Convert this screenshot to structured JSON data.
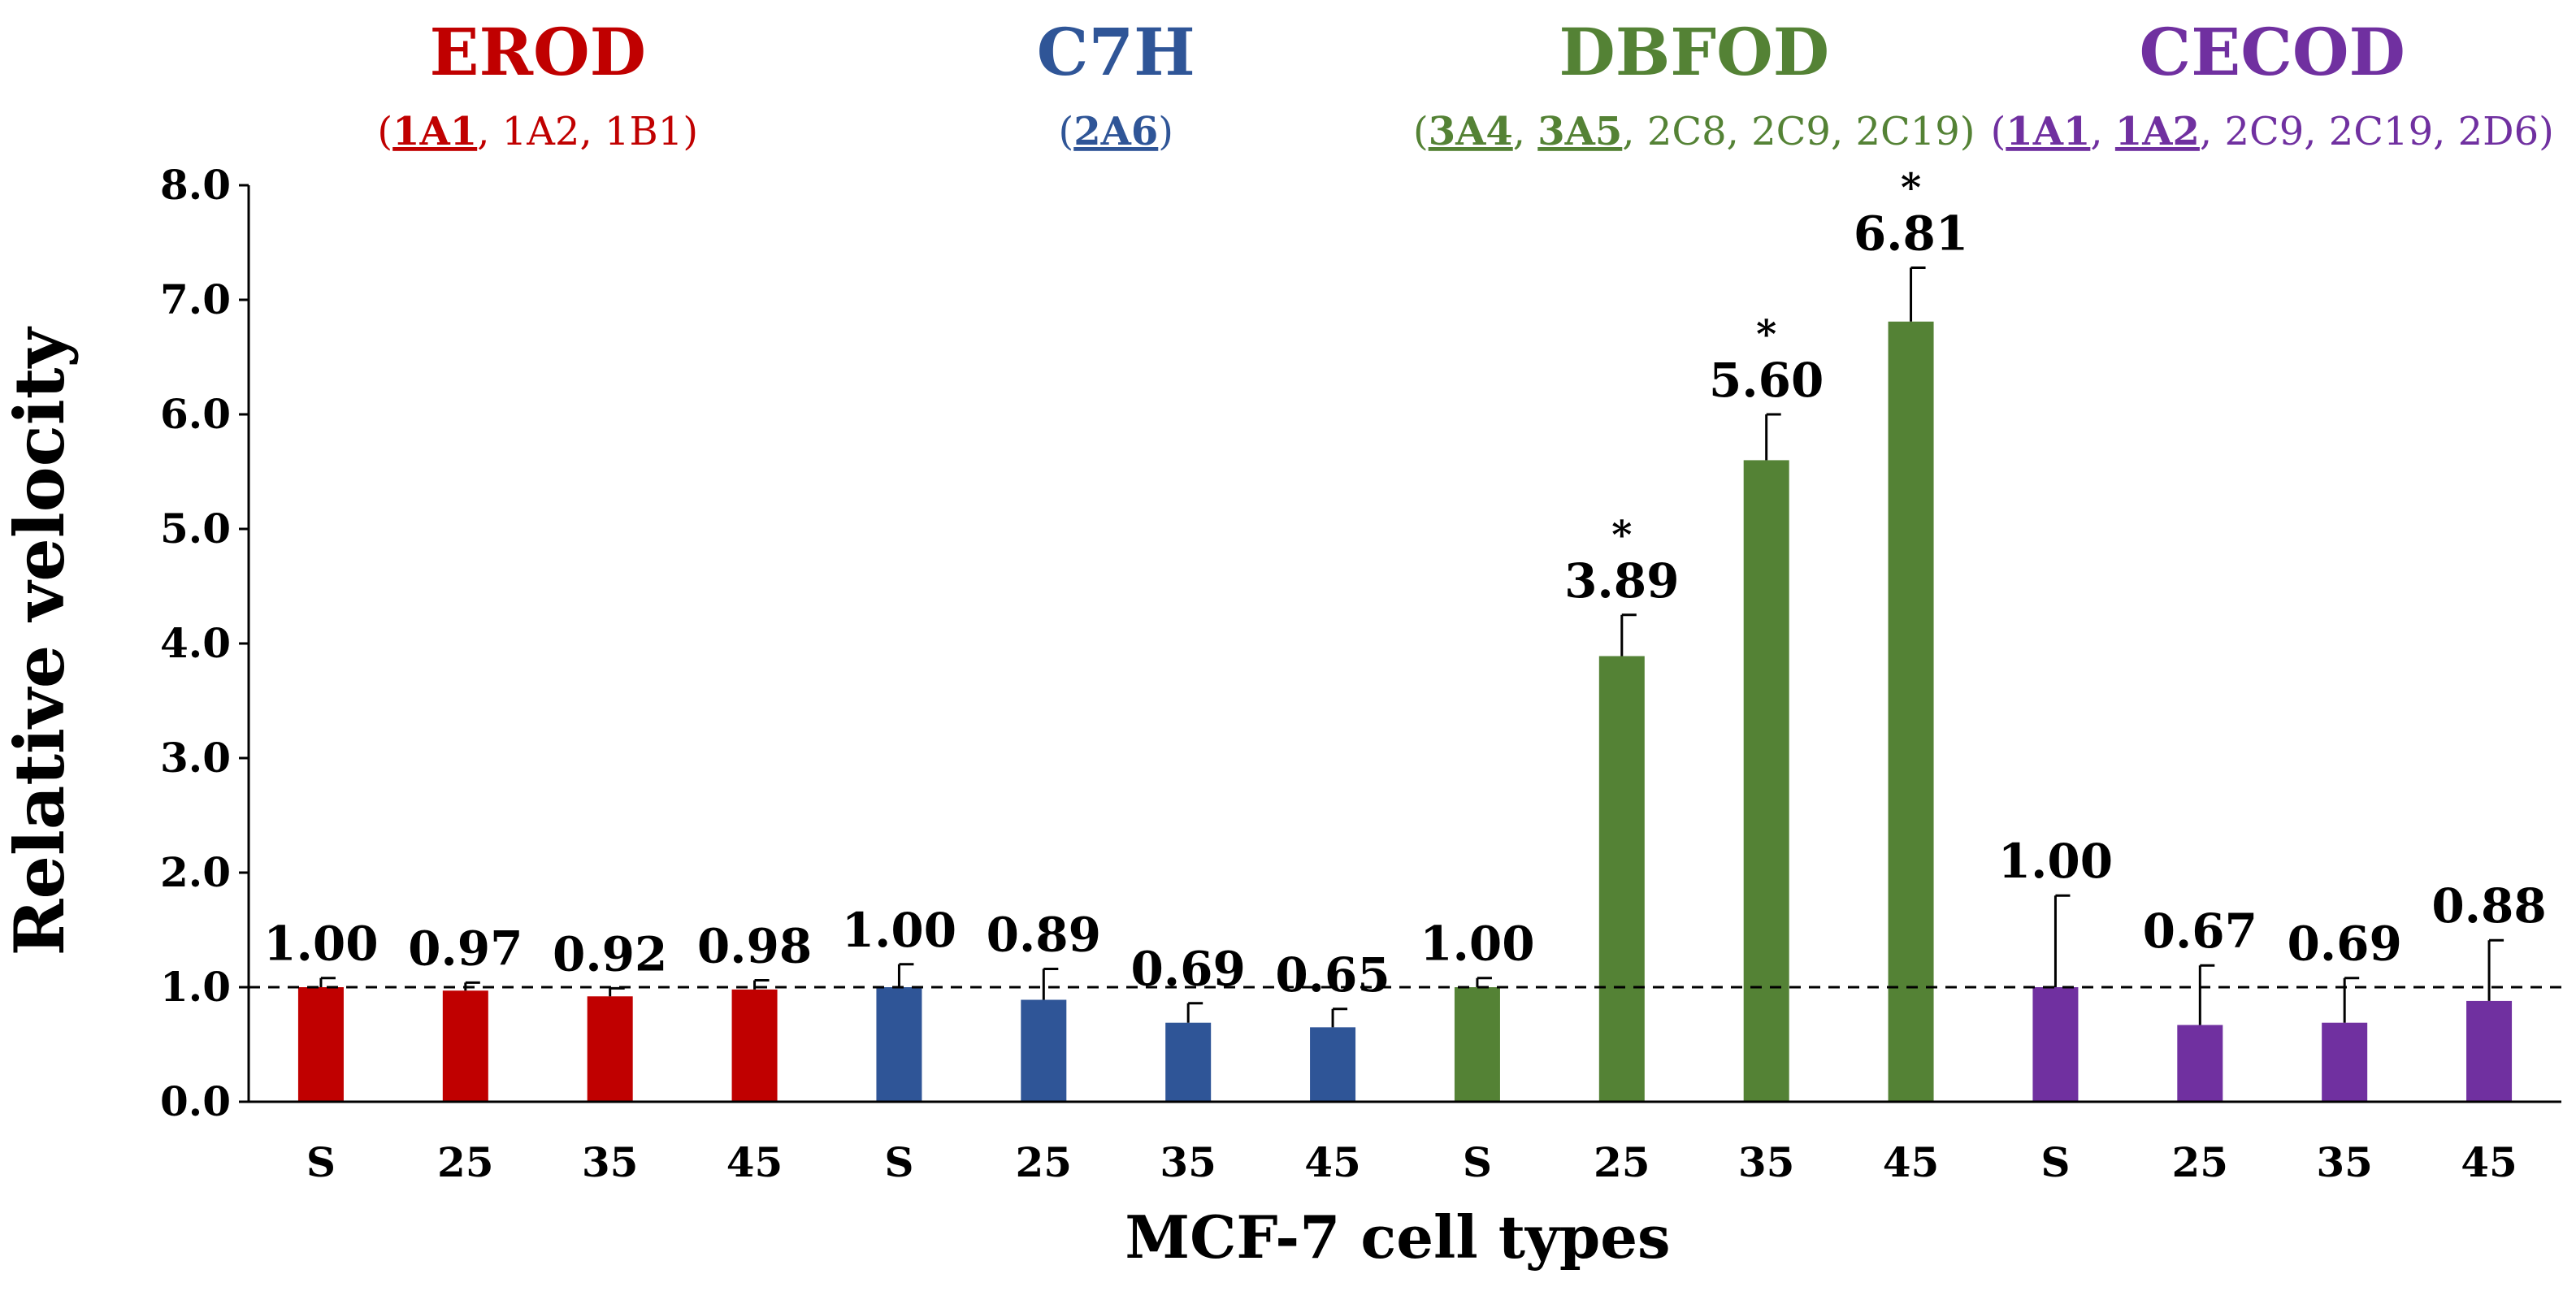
{
  "chart_data": {
    "type": "bar",
    "xlabel": "MCF-7 cell types",
    "ylabel": "Relative velocity",
    "ylim": [
      0,
      8
    ],
    "yticks": [
      "0.0",
      "1.0",
      "2.0",
      "3.0",
      "4.0",
      "5.0",
      "6.0",
      "7.0",
      "8.0"
    ],
    "reference_line": 1.0,
    "groups": [
      {
        "name": "EROD",
        "color": "#c00000",
        "subtitle_parts": [
          {
            "text": "(",
            "u": false
          },
          {
            "text": "1A1",
            "u": true
          },
          {
            "text": ", 1A2, 1B1)",
            "u": false
          }
        ],
        "bars": [
          {
            "category": "S",
            "value": 1.0,
            "label": "1.00",
            "error": 0.08,
            "sig": ""
          },
          {
            "category": "25",
            "value": 0.97,
            "label": "0.97",
            "error": 0.07,
            "sig": ""
          },
          {
            "category": "35",
            "value": 0.92,
            "label": "0.92",
            "error": 0.07,
            "sig": ""
          },
          {
            "category": "45",
            "value": 0.98,
            "label": "0.98",
            "error": 0.08,
            "sig": ""
          }
        ]
      },
      {
        "name": "C7H",
        "color": "#2f5597",
        "subtitle_parts": [
          {
            "text": "(",
            "u": false
          },
          {
            "text": "2A6",
            "u": true
          },
          {
            "text": ")",
            "u": false
          }
        ],
        "bars": [
          {
            "category": "S",
            "value": 1.0,
            "label": "1.00",
            "error": 0.2,
            "sig": ""
          },
          {
            "category": "25",
            "value": 0.89,
            "label": "0.89",
            "error": 0.27,
            "sig": ""
          },
          {
            "category": "35",
            "value": 0.69,
            "label": "0.69",
            "error": 0.17,
            "sig": ""
          },
          {
            "category": "45",
            "value": 0.65,
            "label": "0.65",
            "error": 0.16,
            "sig": ""
          }
        ]
      },
      {
        "name": "DBFOD",
        "color": "#548235",
        "subtitle_parts": [
          {
            "text": "(",
            "u": false
          },
          {
            "text": "3A4",
            "u": true
          },
          {
            "text": ", ",
            "u": false
          },
          {
            "text": "3A5",
            "u": true
          },
          {
            "text": ", 2C8, 2C9, 2C19)",
            "u": false
          }
        ],
        "bars": [
          {
            "category": "S",
            "value": 1.0,
            "label": "1.00",
            "error": 0.08,
            "sig": ""
          },
          {
            "category": "25",
            "value": 3.89,
            "label": "3.89",
            "error": 0.36,
            "sig": "*"
          },
          {
            "category": "35",
            "value": 5.6,
            "label": "5.60",
            "error": 0.4,
            "sig": "*"
          },
          {
            "category": "45",
            "value": 6.81,
            "label": "6.81",
            "error": 0.47,
            "sig": "*"
          }
        ]
      },
      {
        "name": "CECOD",
        "color": "#7030a0",
        "subtitle_parts": [
          {
            "text": "(",
            "u": false
          },
          {
            "text": "1A1",
            "u": true
          },
          {
            "text": ", ",
            "u": false
          },
          {
            "text": "1A2",
            "u": true
          },
          {
            "text": ", 2C9, 2C19, 2D6)",
            "u": false
          }
        ],
        "bars": [
          {
            "category": "S",
            "value": 1.0,
            "label": "1.00",
            "error": 0.8,
            "sig": ""
          },
          {
            "category": "25",
            "value": 0.67,
            "label": "0.67",
            "error": 0.52,
            "sig": ""
          },
          {
            "category": "35",
            "value": 0.69,
            "label": "0.69",
            "error": 0.39,
            "sig": ""
          },
          {
            "category": "45",
            "value": 0.88,
            "label": "0.88",
            "error": 0.53,
            "sig": ""
          }
        ]
      }
    ]
  }
}
